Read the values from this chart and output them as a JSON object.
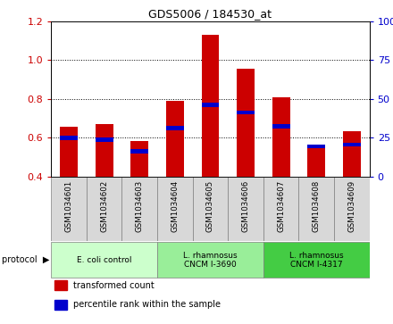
{
  "title": "GDS5006 / 184530_at",
  "samples": [
    "GSM1034601",
    "GSM1034602",
    "GSM1034603",
    "GSM1034604",
    "GSM1034605",
    "GSM1034606",
    "GSM1034607",
    "GSM1034608",
    "GSM1034609"
  ],
  "transformed_count": [
    0.655,
    0.67,
    0.585,
    0.79,
    1.13,
    0.955,
    0.81,
    0.555,
    0.635
  ],
  "percentile_rank": [
    0.6,
    0.59,
    0.53,
    0.65,
    0.77,
    0.73,
    0.66,
    0.555,
    0.565
  ],
  "bar_bottom": 0.4,
  "ylim_left": [
    0.4,
    1.2
  ],
  "ylim_right": [
    0.0,
    100.0
  ],
  "yticks_left": [
    0.4,
    0.6,
    0.8,
    1.0,
    1.2
  ],
  "yticks_right": [
    0,
    25,
    50,
    75,
    100
  ],
  "bar_color": "#cc0000",
  "percentile_color": "#0000cc",
  "groups": [
    {
      "label": "E. coli control",
      "start": 0,
      "end": 3,
      "color": "#ccffcc"
    },
    {
      "label": "L. rhamnosus\nCNCM I-3690",
      "start": 3,
      "end": 6,
      "color": "#99ee99"
    },
    {
      "label": "L. rhamnosus\nCNCM I-4317",
      "start": 6,
      "end": 9,
      "color": "#44cc44"
    }
  ],
  "protocol_label": "protocol",
  "legend_items": [
    {
      "label": "transformed count",
      "color": "#cc0000"
    },
    {
      "label": "percentile rank within the sample",
      "color": "#0000cc"
    }
  ],
  "grid_color": "black",
  "sample_bg": "#d8d8d8",
  "plot_bg": "white",
  "fig_bg": "white",
  "bar_width": 0.5,
  "blue_bar_height": 0.022
}
